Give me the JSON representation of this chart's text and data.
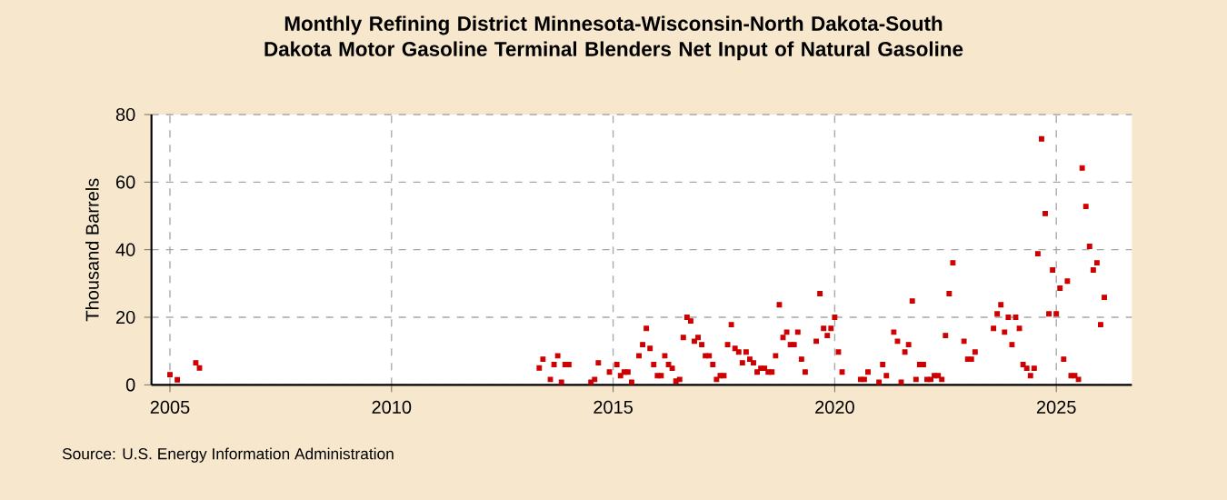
{
  "chart_data": {
    "type": "scatter",
    "title": "Monthly Refining District Minnesota-Wisconsin-North Dakota-South Dakota Motor Gasoline Terminal Blenders Net Input of Natural Gasoline",
    "ylabel": "Thousand Barrels",
    "annotations": [
      "Source: U.S. Energy Information Administration"
    ],
    "x": [
      "2005-01",
      "2005-03",
      "2005-08",
      "2005-09",
      "2013-05",
      "2013-06",
      "2013-08",
      "2013-09",
      "2013-10",
      "2013-11",
      "2013-12",
      "2014-01",
      "2014-07",
      "2014-08",
      "2014-09",
      "2014-12",
      "2015-02",
      "2015-03",
      "2015-04",
      "2015-05",
      "2015-06",
      "2015-08",
      "2015-09",
      "2015-10",
      "2015-11",
      "2015-12",
      "2016-01",
      "2016-02",
      "2016-03",
      "2016-04",
      "2016-05",
      "2016-06",
      "2016-07",
      "2016-08",
      "2016-09",
      "2016-10",
      "2016-11",
      "2016-12",
      "2017-01",
      "2017-02",
      "2017-03",
      "2017-04",
      "2017-05",
      "2017-06",
      "2017-07",
      "2017-08",
      "2017-09",
      "2017-10",
      "2017-11",
      "2017-12",
      "2018-01",
      "2018-02",
      "2018-03",
      "2018-04",
      "2018-05",
      "2018-06",
      "2018-07",
      "2018-08",
      "2018-09",
      "2018-10",
      "2018-11",
      "2018-12",
      "2019-01",
      "2019-02",
      "2019-03",
      "2019-04",
      "2019-05",
      "2019-08",
      "2019-09",
      "2019-10",
      "2019-11",
      "2019-12",
      "2020-01",
      "2020-02",
      "2020-03",
      "2020-08",
      "2020-09",
      "2020-10",
      "2021-01",
      "2021-02",
      "2021-03",
      "2021-05",
      "2021-06",
      "2021-07",
      "2021-08",
      "2021-09",
      "2021-10",
      "2021-11",
      "2021-12",
      "2022-01",
      "2022-02",
      "2022-03",
      "2022-04",
      "2022-05",
      "2022-06",
      "2022-07",
      "2022-08",
      "2022-09",
      "2022-12",
      "2023-01",
      "2023-02",
      "2023-03",
      "2023-08",
      "2023-09",
      "2023-10",
      "2023-11",
      "2023-12",
      "2024-01",
      "2024-02",
      "2024-03",
      "2024-04",
      "2024-05",
      "2024-06",
      "2024-07",
      "2024-08",
      "2024-09",
      "2024-10",
      "2024-11",
      "2024-12",
      "2025-01",
      "2025-02",
      "2025-03",
      "2025-04",
      "2025-05",
      "2025-06",
      "2025-07",
      "2025-08",
      "2025-09",
      "2025-10",
      "2025-11",
      "2025-12",
      "2026-01",
      "2026-02"
    ],
    "series": [
      {
        "color": "#cc0000",
        "values": [
          3,
          1.5,
          6.5,
          5,
          5,
          7.6,
          1.6,
          6,
          8.6,
          0.8,
          6,
          6,
          0.8,
          1.6,
          6.5,
          3.8,
          6,
          2.7,
          3.8,
          3.8,
          0.8,
          8.6,
          11.9,
          16.7,
          10.8,
          6,
          2.7,
          2.7,
          8.6,
          6,
          4.9,
          1.1,
          1.6,
          14,
          20,
          18.9,
          12.9,
          14,
          11.9,
          8.6,
          8.6,
          6,
          1.6,
          2.7,
          2.7,
          11.9,
          17.8,
          10.8,
          9.7,
          6.5,
          9.7,
          7.6,
          6.5,
          3.8,
          4.9,
          4.9,
          3.8,
          3.8,
          8.6,
          23.7,
          14,
          15.6,
          11.9,
          11.9,
          15.6,
          7.6,
          3.8,
          12.9,
          27,
          16.7,
          14.6,
          16.7,
          20,
          9.7,
          3.8,
          1.6,
          1.6,
          3.8,
          0.8,
          6,
          2.7,
          15.6,
          12.9,
          0.8,
          9.7,
          11.9,
          24.8,
          1.6,
          6,
          6,
          1.6,
          1.6,
          2.7,
          2.7,
          1.6,
          14.6,
          27,
          36.1,
          12.9,
          7.6,
          7.6,
          9.7,
          16.7,
          21,
          23.7,
          15.6,
          20,
          11.9,
          20,
          16.7,
          6,
          4.9,
          2.7,
          4.9,
          38.8,
          72.8,
          50.7,
          21,
          34,
          21,
          28.6,
          7.6,
          30.7,
          2.7,
          2.7,
          1.6,
          64.2,
          52.8,
          41,
          34,
          36.1,
          17.8,
          25.9
        ]
      }
    ],
    "xlim": [
      "2004-08-01",
      "2026-09-15"
    ],
    "xticks": [
      "2005",
      "2010",
      "2015",
      "2020",
      "2025"
    ],
    "ylim": [
      0,
      80
    ],
    "yticks": [
      0,
      20,
      40,
      60,
      80
    ],
    "grid": true,
    "marker": "square"
  }
}
